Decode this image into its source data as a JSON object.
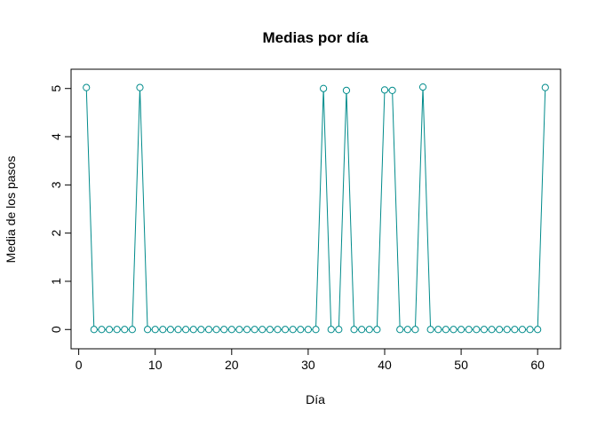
{
  "chart_data": {
    "type": "line",
    "title": "Medias por día",
    "xlabel": "Día",
    "ylabel": "Media de los pasos",
    "xlim": [
      -1,
      63
    ],
    "ylim": [
      -0.4,
      5.4
    ],
    "x_ticks": [
      0,
      10,
      20,
      30,
      40,
      50,
      60
    ],
    "y_ticks": [
      0,
      1,
      2,
      3,
      4,
      5
    ],
    "grid": false,
    "color": "#008b8b",
    "marker": "open-circle",
    "series": [
      {
        "x": [
          1,
          2,
          3,
          4,
          5,
          6,
          7,
          8,
          9,
          10,
          11,
          12,
          13,
          14,
          15,
          16,
          17,
          18,
          19,
          20,
          21,
          22,
          23,
          24,
          25,
          26,
          27,
          28,
          29,
          30,
          31,
          32,
          33,
          34,
          35,
          36,
          37,
          38,
          39,
          40,
          41,
          42,
          43,
          44,
          45,
          46,
          47,
          48,
          49,
          50,
          51,
          52,
          53,
          54,
          55,
          56,
          57,
          58,
          59,
          60,
          61
        ],
        "values": [
          5.02,
          0,
          0,
          0,
          0,
          0,
          0,
          5.02,
          0,
          0,
          0,
          0,
          0,
          0,
          0,
          0,
          0,
          0,
          0,
          0,
          0,
          0,
          0,
          0,
          0,
          0,
          0,
          0,
          0,
          0,
          0,
          5.0,
          0,
          0,
          4.96,
          0,
          0,
          0,
          0,
          4.97,
          4.96,
          0,
          0,
          0,
          5.03,
          0,
          0,
          0,
          0,
          0,
          0,
          0,
          0,
          0,
          0,
          0,
          0,
          0,
          0,
          0,
          5.02
        ]
      }
    ]
  }
}
